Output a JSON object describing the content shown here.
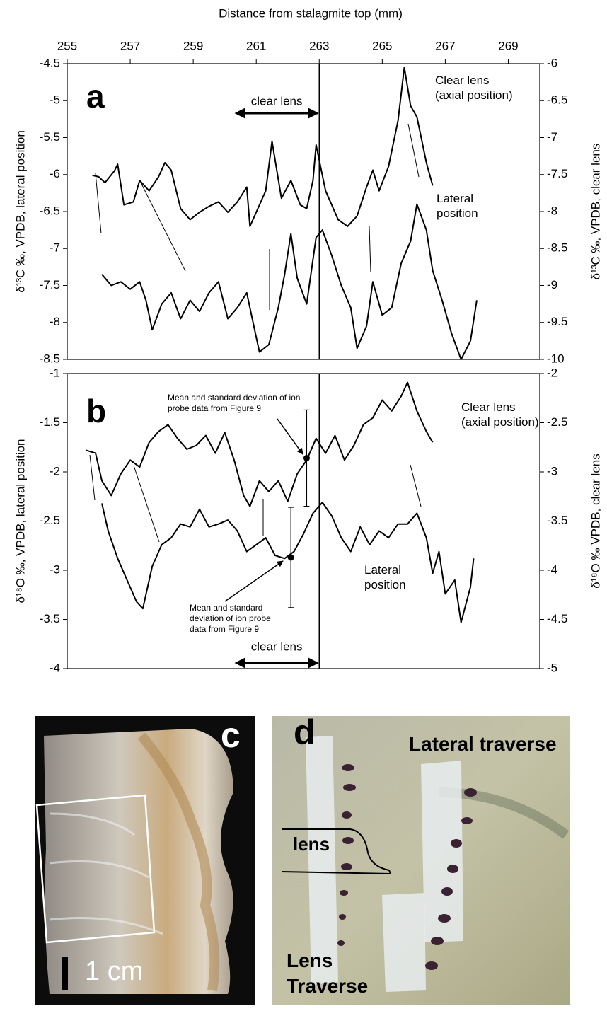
{
  "chart_data": [
    {
      "type": "line",
      "panel": "a",
      "xlabel": "Distance from stalagmite top (mm)",
      "ylabel": "δ¹³C ‰, VPDB, lateral position",
      "y2label": "δ¹³C ‰, VPDB, clear lens",
      "xlim": [
        255,
        270
      ],
      "xticks": [
        255,
        257,
        259,
        261,
        263,
        265,
        267,
        269
      ],
      "ylim": [
        -8.5,
        -4.5
      ],
      "yticks": [
        -8.5,
        -8,
        -7.5,
        -7,
        -6.5,
        -6,
        -5.5,
        -5,
        -4.5
      ],
      "y2lim": [
        -10,
        -6
      ],
      "y2ticks": [
        -10,
        -9.5,
        -9,
        -8.5,
        -8,
        -7.5,
        -7,
        -6.5,
        -6
      ],
      "vline": 263,
      "span": {
        "label": "clear lens",
        "x": [
          260.3,
          263
        ]
      },
      "series": [
        {
          "name": "Clear lens (axial position)",
          "axis": "y2",
          "color": "#000000",
          "x": [
            255.8,
            256.0,
            256.2,
            256.5,
            256.6,
            256.8,
            257.1,
            257.3,
            257.6,
            257.9,
            258.1,
            258.3,
            258.6,
            258.9,
            259.2,
            259.5,
            259.8,
            260.1,
            260.4,
            260.7,
            260.8,
            261.0,
            261.3,
            261.5,
            261.8,
            262.1,
            262.4,
            262.6,
            262.8,
            262.9,
            263.2,
            263.6,
            263.9,
            264.2,
            264.5,
            264.7,
            264.9,
            265.2,
            265.5,
            265.7,
            265.9,
            266.1,
            266.4,
            266.6
          ],
          "values": [
            -7.51,
            -7.53,
            -7.61,
            -7.45,
            -7.36,
            -7.91,
            -7.87,
            -7.58,
            -7.72,
            -7.53,
            -7.34,
            -7.44,
            -7.96,
            -8.11,
            -8.01,
            -7.93,
            -7.87,
            -8.01,
            -7.87,
            -7.67,
            -8.2,
            -8.01,
            -7.72,
            -7.05,
            -7.82,
            -7.58,
            -7.91,
            -7.96,
            -7.58,
            -7.1,
            -7.72,
            -8.11,
            -8.2,
            -8.06,
            -7.67,
            -7.44,
            -7.72,
            -7.39,
            -6.77,
            -6.05,
            -6.57,
            -6.72,
            -7.34,
            -7.65
          ]
        },
        {
          "name": "Lateral position",
          "axis": "y",
          "color": "#000000",
          "x": [
            256.1,
            256.4,
            256.7,
            257.0,
            257.3,
            257.5,
            257.7,
            258.0,
            258.3,
            258.6,
            258.9,
            259.2,
            259.5,
            259.8,
            260.1,
            260.4,
            260.7,
            260.9,
            261.1,
            261.4,
            261.7,
            261.9,
            262.1,
            262.3,
            262.6,
            262.9,
            263.1,
            263.4,
            263.7,
            264.0,
            264.2,
            264.5,
            264.7,
            265.0,
            265.3,
            265.6,
            265.9,
            266.1,
            266.4,
            266.6,
            266.9,
            267.2,
            267.5,
            267.8,
            268.0
          ],
          "values": [
            -7.35,
            -7.5,
            -7.45,
            -7.55,
            -7.45,
            -7.7,
            -8.1,
            -7.75,
            -7.6,
            -7.95,
            -7.7,
            -7.85,
            -7.6,
            -7.45,
            -7.95,
            -7.8,
            -7.6,
            -8.0,
            -8.4,
            -8.3,
            -7.8,
            -7.35,
            -6.8,
            -7.4,
            -7.75,
            -6.85,
            -6.75,
            -7.1,
            -7.5,
            -7.8,
            -8.35,
            -8.05,
            -7.45,
            -7.9,
            -7.8,
            -7.2,
            -6.9,
            -6.4,
            -6.75,
            -7.3,
            -7.7,
            -8.15,
            -8.5,
            -8.25,
            -7.7
          ]
        }
      ]
    },
    {
      "type": "line",
      "panel": "b",
      "ylabel": "δ¹⁸O ‰, VPDB, lateral position",
      "y2label": "δ¹⁸O ‰ VPDB, clear lens",
      "xlim": [
        255,
        270
      ],
      "ylim": [
        -4,
        -1
      ],
      "yticks": [
        -4,
        -3.5,
        -3,
        -2.5,
        -2,
        -1.5,
        -1
      ],
      "y2lim": [
        -5,
        -2
      ],
      "y2ticks": [
        -5,
        -4.5,
        -4,
        -3.5,
        -3,
        -2.5,
        -2
      ],
      "vline": 263,
      "span": {
        "label": "clear lens",
        "x": [
          260.3,
          263
        ]
      },
      "series": [
        {
          "name": "Clear lens (axial position)",
          "axis": "y2",
          "color": "#000000",
          "x": [
            255.6,
            255.9,
            256.1,
            256.4,
            256.7,
            257.0,
            257.3,
            257.6,
            257.9,
            258.2,
            258.5,
            258.8,
            259.1,
            259.4,
            259.7,
            260.0,
            260.3,
            260.6,
            260.8,
            261.1,
            261.4,
            261.7,
            262.0,
            262.3,
            262.6,
            262.9,
            263.2,
            263.5,
            263.8,
            264.1,
            264.4,
            264.7,
            265.0,
            265.3,
            265.6,
            265.8,
            266.1,
            266.4,
            266.6
          ],
          "values": [
            -2.78,
            -2.81,
            -3.09,
            -3.24,
            -3.02,
            -2.88,
            -2.95,
            -2.7,
            -2.59,
            -2.52,
            -2.66,
            -2.77,
            -2.73,
            -2.63,
            -2.81,
            -2.6,
            -2.88,
            -3.24,
            -3.35,
            -3.09,
            -3.2,
            -3.09,
            -3.3,
            -3.02,
            -2.88,
            -2.66,
            -2.81,
            -2.63,
            -2.88,
            -2.73,
            -2.52,
            -2.45,
            -2.27,
            -2.38,
            -2.23,
            -2.09,
            -2.38,
            -2.59,
            -2.7
          ]
        },
        {
          "name": "Lateral position",
          "axis": "y",
          "color": "#000000",
          "x": [
            256.1,
            256.3,
            256.6,
            256.9,
            257.2,
            257.4,
            257.7,
            258.0,
            258.3,
            258.6,
            258.9,
            259.2,
            259.5,
            259.8,
            260.1,
            260.4,
            260.7,
            261.0,
            261.3,
            261.6,
            261.9,
            262.2,
            262.5,
            262.8,
            263.1,
            263.4,
            263.7,
            264.0,
            264.3,
            264.6,
            264.9,
            265.2,
            265.5,
            265.8,
            266.1,
            266.4,
            266.6,
            266.8,
            267.0,
            267.3,
            267.5,
            267.8,
            267.9
          ],
          "values": [
            -2.32,
            -2.6,
            -2.88,
            -3.1,
            -3.32,
            -3.39,
            -2.96,
            -2.74,
            -2.67,
            -2.53,
            -2.56,
            -2.38,
            -2.56,
            -2.53,
            -2.49,
            -2.6,
            -2.81,
            -2.74,
            -2.67,
            -2.85,
            -2.88,
            -2.81,
            -2.63,
            -2.42,
            -2.31,
            -2.45,
            -2.67,
            -2.81,
            -2.56,
            -2.74,
            -2.6,
            -2.67,
            -2.53,
            -2.53,
            -2.42,
            -2.67,
            -3.03,
            -2.81,
            -3.24,
            -3.1,
            -3.53,
            -3.17,
            -2.88
          ]
        }
      ],
      "error_bars": [
        {
          "label": "Mean and standard deviation of ion probe data from Figure 9",
          "axis": "y2",
          "x": 262.6,
          "value": -2.86,
          "error": 0.49
        },
        {
          "label": "Mean and standard deviation of ion probe data from Figure 9",
          "axis": "y",
          "x": 262.1,
          "value": -2.87,
          "error": 0.51
        }
      ]
    }
  ],
  "photos": {
    "c": {
      "label": "c",
      "scale": "1 cm"
    },
    "d": {
      "label": "d",
      "lateral": "Lateral traverse",
      "lens": "lens",
      "lens_traverse": "Lens Traverse"
    }
  }
}
